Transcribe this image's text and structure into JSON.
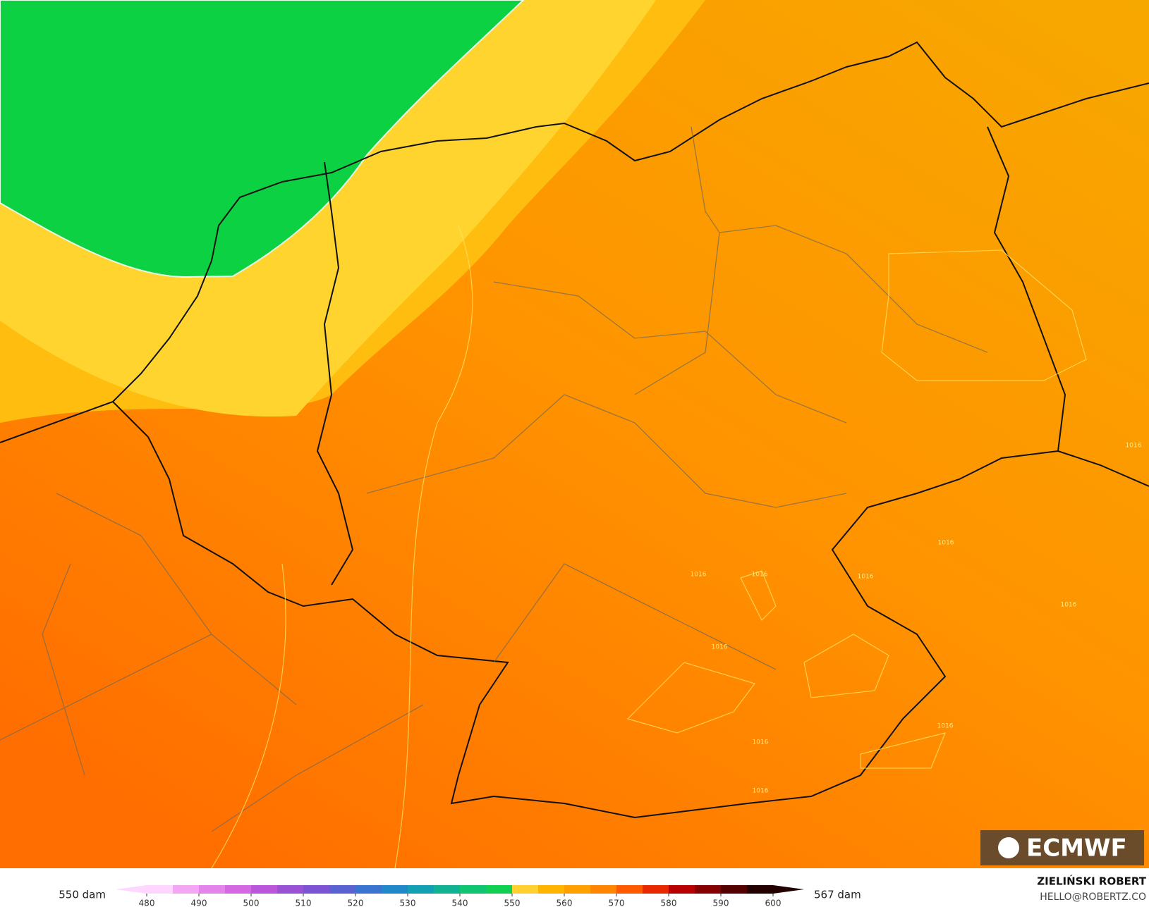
{
  "legend": {
    "left_label": "550 dam",
    "right_label": "567 dam",
    "ticks": [
      480,
      490,
      500,
      510,
      520,
      530,
      540,
      550,
      560,
      570,
      580,
      590,
      600
    ],
    "colors": [
      "#ffd6ff",
      "#f3a6f3",
      "#e484ea",
      "#d468e2",
      "#b956da",
      "#9a52d4",
      "#7a54d2",
      "#5a62d2",
      "#3a74d0",
      "#2289c8",
      "#12a0b2",
      "#10b292",
      "#10c472",
      "#10d052",
      "#ffd030",
      "#ffb400",
      "#ffa000",
      "#ff8400",
      "#ff5a00",
      "#e82800",
      "#b80000",
      "#850000",
      "#520000",
      "#220000"
    ]
  },
  "logo": "ECMWF",
  "credit": {
    "name": "ZIELIŃSKI ROBERT",
    "email": "HELLO@ROBERTZ.CO"
  },
  "isobar_labels": [
    "1016",
    "1016",
    "1016",
    "1016",
    "1016",
    "1016",
    "1016",
    "1016",
    "1016",
    "1016"
  ]
}
